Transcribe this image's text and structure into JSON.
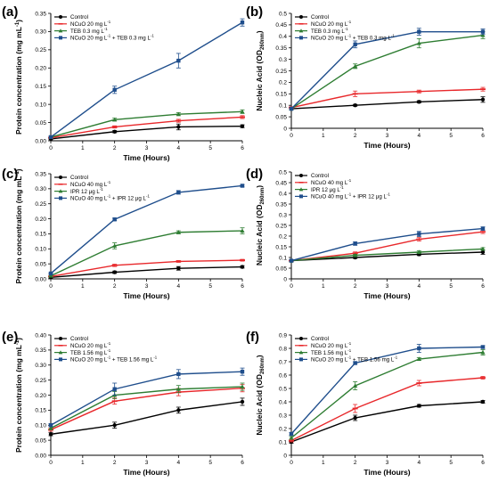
{
  "chart_data": [
    {
      "type": "line",
      "panel_label": "(a)",
      "xlabel": "Time (Hours)",
      "ylabel": "Protein concentration (mg mL⁻¹)",
      "xlim": [
        0,
        6
      ],
      "ylim": [
        0,
        0.35
      ],
      "xticks": [
        "0",
        "1",
        "2",
        "3",
        "4",
        "5",
        "6"
      ],
      "yticks": [
        "0.00",
        "0.05",
        "0.10",
        "0.15",
        "0.20",
        "0.25",
        "0.30",
        "0.35"
      ],
      "legend_position": "top-left",
      "x": [
        0,
        2,
        4,
        6
      ],
      "series": [
        {
          "name": "Control",
          "color": "#000000",
          "values": [
            0.005,
            0.025,
            0.038,
            0.04
          ],
          "errors": [
            0.002,
            0.003,
            0.008,
            0.004
          ]
        },
        {
          "name": "NCuO 20 mg L⁻¹",
          "color": "#e8282b",
          "values": [
            0.008,
            0.038,
            0.055,
            0.065
          ],
          "errors": [
            0.002,
            0.003,
            0.004,
            0.004
          ]
        },
        {
          "name": "TEB 0.3 mg L⁻¹",
          "color": "#2e7d32",
          "values": [
            0.01,
            0.058,
            0.073,
            0.08
          ],
          "errors": [
            0.002,
            0.004,
            0.004,
            0.005
          ]
        },
        {
          "name": "NCuO 20 mg L⁻¹ + TEB 0.3 mg L⁻¹",
          "color": "#1f4e8c",
          "values": [
            0.01,
            0.14,
            0.22,
            0.325
          ],
          "errors": [
            0.002,
            0.01,
            0.02,
            0.01
          ]
        }
      ]
    },
    {
      "type": "line",
      "panel_label": "(b)",
      "xlabel": "Time (Hours)",
      "ylabel": "Nucleic Acid (OD260nm)",
      "xlim": [
        0,
        6
      ],
      "ylim": [
        0,
        0.5
      ],
      "xticks": [
        "0",
        "1",
        "2",
        "3",
        "4",
        "5",
        "6"
      ],
      "yticks": [
        "0",
        "0.05",
        "0.1",
        "0.15",
        "0.2",
        "0.25",
        "0.3",
        "0.35",
        "0.4",
        "0.45",
        "0.5"
      ],
      "legend_position": "top-left",
      "x": [
        0,
        2,
        4,
        6
      ],
      "series": [
        {
          "name": "Control",
          "color": "#000000",
          "values": [
            0.085,
            0.1,
            0.115,
            0.125
          ],
          "errors": [
            0.004,
            0.004,
            0.005,
            0.012
          ]
        },
        {
          "name": "NCuO 20 mg L⁻¹",
          "color": "#e8282b",
          "values": [
            0.09,
            0.15,
            0.16,
            0.17
          ],
          "errors": [
            0.004,
            0.012,
            0.006,
            0.008
          ]
        },
        {
          "name": "TEB 0.3 mg L⁻¹",
          "color": "#2e7d32",
          "values": [
            0.085,
            0.27,
            0.37,
            0.405
          ],
          "errors": [
            0.004,
            0.01,
            0.02,
            0.015
          ]
        },
        {
          "name": "NCuO 20 mg L⁻¹ + TEB 0.3 mg L⁻¹",
          "color": "#1f4e8c",
          "values": [
            0.085,
            0.365,
            0.42,
            0.42
          ],
          "errors": [
            0.004,
            0.015,
            0.015,
            0.012
          ]
        }
      ]
    },
    {
      "type": "line",
      "panel_label": "(c)",
      "xlabel": "Time (Hours)",
      "ylabel": "Protein concentration (mg mL⁻¹)",
      "xlim": [
        0,
        6
      ],
      "ylim": [
        0,
        0.35
      ],
      "xticks": [
        "0",
        "1",
        "2",
        "3",
        "4",
        "5",
        "6"
      ],
      "yticks": [
        "0.00",
        "0.05",
        "0.10",
        "0.15",
        "0.20",
        "0.25",
        "0.30",
        "0.35"
      ],
      "legend_position": "top-left",
      "x": [
        0,
        2,
        4,
        6
      ],
      "series": [
        {
          "name": "Control",
          "color": "#000000",
          "values": [
            0.005,
            0.022,
            0.035,
            0.04
          ],
          "errors": [
            0.002,
            0.004,
            0.006,
            0.004
          ]
        },
        {
          "name": "NCuO 40 mg L⁻¹",
          "color": "#e8282b",
          "values": [
            0.008,
            0.045,
            0.058,
            0.062
          ],
          "errors": [
            0.002,
            0.004,
            0.003,
            0.003
          ]
        },
        {
          "name": "IPR 12 μg L⁻¹",
          "color": "#2e7d32",
          "values": [
            0.01,
            0.11,
            0.155,
            0.16
          ],
          "errors": [
            0.002,
            0.01,
            0.005,
            0.01
          ]
        },
        {
          "name": "NCuO 40 mg L⁻¹ + IPR 12 μg L⁻¹",
          "color": "#1f4e8c",
          "values": [
            0.018,
            0.198,
            0.288,
            0.31
          ],
          "errors": [
            0.002,
            0.004,
            0.006,
            0.004
          ]
        }
      ]
    },
    {
      "type": "line",
      "panel_label": "(d)",
      "xlabel": "Time (Hours)",
      "ylabel": "Nucleic Acid (OD260nm)",
      "xlim": [
        0,
        6
      ],
      "ylim": [
        0,
        0.5
      ],
      "xticks": [
        "0",
        "1",
        "2",
        "3",
        "4",
        "5",
        "6"
      ],
      "yticks": [
        "0",
        "0.05",
        "0.1",
        "0.15",
        "0.2",
        "0.25",
        "0.3",
        "0.35",
        "0.4",
        "0.45",
        "0.5"
      ],
      "legend_position": "top-left",
      "x": [
        0,
        2,
        4,
        6
      ],
      "series": [
        {
          "name": "Control",
          "color": "#000000",
          "values": [
            0.085,
            0.1,
            0.115,
            0.125
          ],
          "errors": [
            0.004,
            0.005,
            0.006,
            0.01
          ]
        },
        {
          "name": "NCuO 40 mg L⁻¹",
          "color": "#e8282b",
          "values": [
            0.085,
            0.12,
            0.185,
            0.22
          ],
          "errors": [
            0.004,
            0.006,
            0.008,
            0.008
          ]
        },
        {
          "name": "IPR 12 μg L⁻¹",
          "color": "#2e7d32",
          "values": [
            0.085,
            0.11,
            0.125,
            0.14
          ],
          "errors": [
            0.004,
            0.005,
            0.006,
            0.006
          ]
        },
        {
          "name": "NCuO 40 mg L⁻¹ + IPR 12 μg L⁻¹",
          "color": "#1f4e8c",
          "values": [
            0.085,
            0.165,
            0.21,
            0.235
          ],
          "errors": [
            0.004,
            0.008,
            0.012,
            0.008
          ]
        }
      ]
    },
    {
      "type": "line",
      "panel_label": "(e)",
      "xlabel": "Time (Hours)",
      "ylabel": "Protein concentration (mg mL⁻¹)",
      "xlim": [
        0,
        6
      ],
      "ylim": [
        0,
        0.4
      ],
      "xticks": [
        "0",
        "1",
        "2",
        "3",
        "4",
        "5",
        "6"
      ],
      "yticks": [
        "0.00",
        "0.05",
        "0.10",
        "0.15",
        "0.20",
        "0.25",
        "0.30",
        "0.35",
        "0.40"
      ],
      "legend_position": "top-left",
      "x": [
        0,
        2,
        4,
        6
      ],
      "series": [
        {
          "name": "Control",
          "color": "#000000",
          "values": [
            0.07,
            0.1,
            0.15,
            0.178
          ],
          "errors": [
            0.005,
            0.01,
            0.01,
            0.012
          ]
        },
        {
          "name": "NCuO 20 mg L⁻¹",
          "color": "#e8282b",
          "values": [
            0.085,
            0.18,
            0.21,
            0.223
          ],
          "errors": [
            0.005,
            0.01,
            0.012,
            0.012
          ]
        },
        {
          "name": "TEB 1.56 mg L⁻¹",
          "color": "#2e7d32",
          "values": [
            0.09,
            0.2,
            0.22,
            0.228
          ],
          "errors": [
            0.005,
            0.012,
            0.012,
            0.012
          ]
        },
        {
          "name": "NCuO 20 mg L⁻¹ + TEB 1.56 mg L⁻¹",
          "color": "#1f4e8c",
          "values": [
            0.1,
            0.22,
            0.27,
            0.278
          ],
          "errors": [
            0.005,
            0.02,
            0.015,
            0.012
          ]
        }
      ]
    },
    {
      "type": "line",
      "panel_label": "(f)",
      "xlabel": "Time (Hours)",
      "ylabel": "Nucleic Acid (OD260nm)",
      "xlim": [
        0,
        6
      ],
      "ylim": [
        0,
        0.9
      ],
      "xticks": [
        "0",
        "1",
        "2",
        "3",
        "4",
        "5",
        "6"
      ],
      "yticks": [
        "0",
        "0.1",
        "0.2",
        "0.3",
        "0.4",
        "0.5",
        "0.6",
        "0.7",
        "0.8",
        "0.9"
      ],
      "legend_position": "top-left",
      "x": [
        0,
        2,
        4,
        6
      ],
      "series": [
        {
          "name": "Control",
          "color": "#000000",
          "values": [
            0.1,
            0.28,
            0.37,
            0.4
          ],
          "errors": [
            0.01,
            0.02,
            0.01,
            0.01
          ]
        },
        {
          "name": "NCuO 20 mg L⁻¹",
          "color": "#e8282b",
          "values": [
            0.11,
            0.35,
            0.54,
            0.58
          ],
          "errors": [
            0.01,
            0.03,
            0.02,
            0.01
          ]
        },
        {
          "name": "TEB 1.56 mg L⁻¹",
          "color": "#2e7d32",
          "values": [
            0.13,
            0.52,
            0.72,
            0.77
          ],
          "errors": [
            0.01,
            0.03,
            0.01,
            0.02
          ]
        },
        {
          "name": "NCuO 20 mg L⁻¹ + TEB 1.56 mg L⁻¹",
          "color": "#1f4e8c",
          "values": [
            0.16,
            0.69,
            0.8,
            0.81
          ],
          "errors": [
            0.01,
            0.01,
            0.03,
            0.01
          ]
        }
      ]
    }
  ]
}
